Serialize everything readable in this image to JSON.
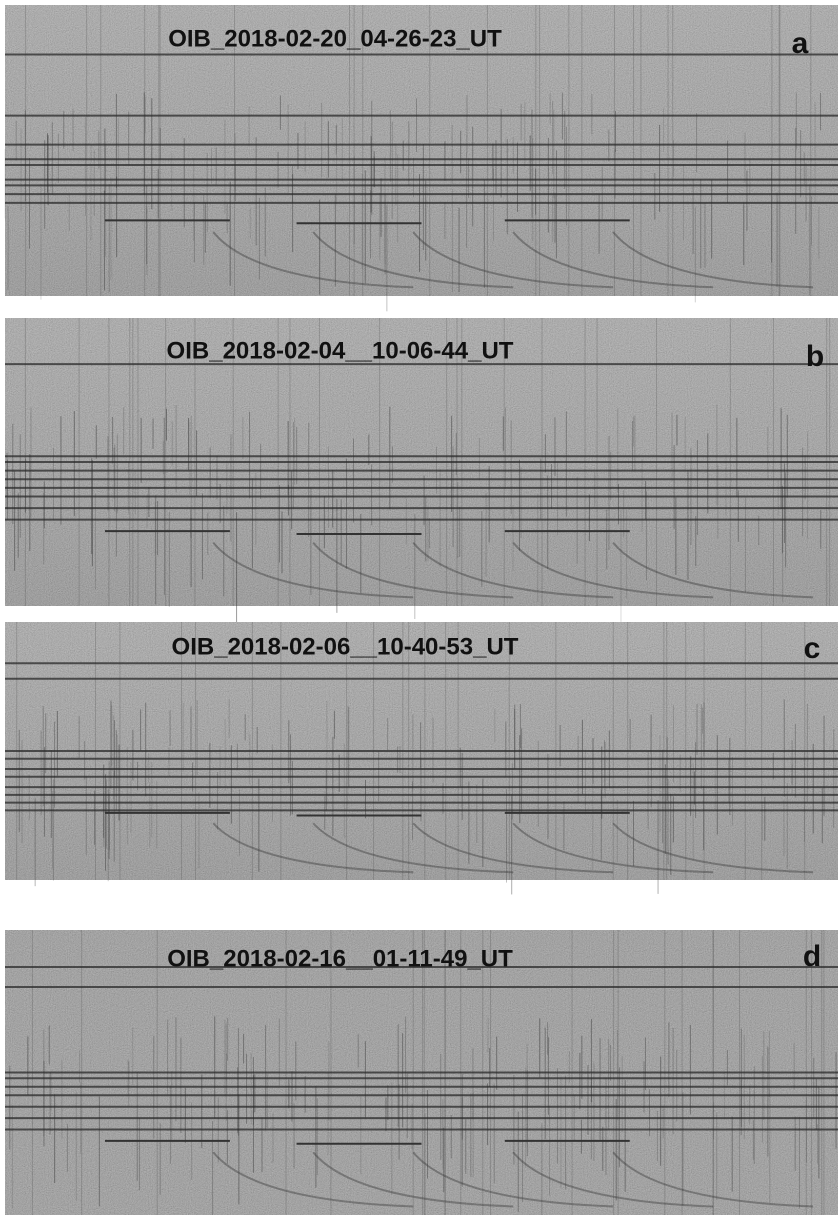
{
  "panels": [
    {
      "title": "OIB_2018-02-20_04-26-23_UT",
      "letter": "a"
    },
    {
      "title": "OIB_2018-02-04__10-06-44_UT",
      "letter": "b"
    },
    {
      "title": "OIB_2018-02-06__10-40-53_UT",
      "letter": "c"
    },
    {
      "title": "OIB_2018-02-16__01-11-49_UT",
      "letter": "d"
    }
  ]
}
